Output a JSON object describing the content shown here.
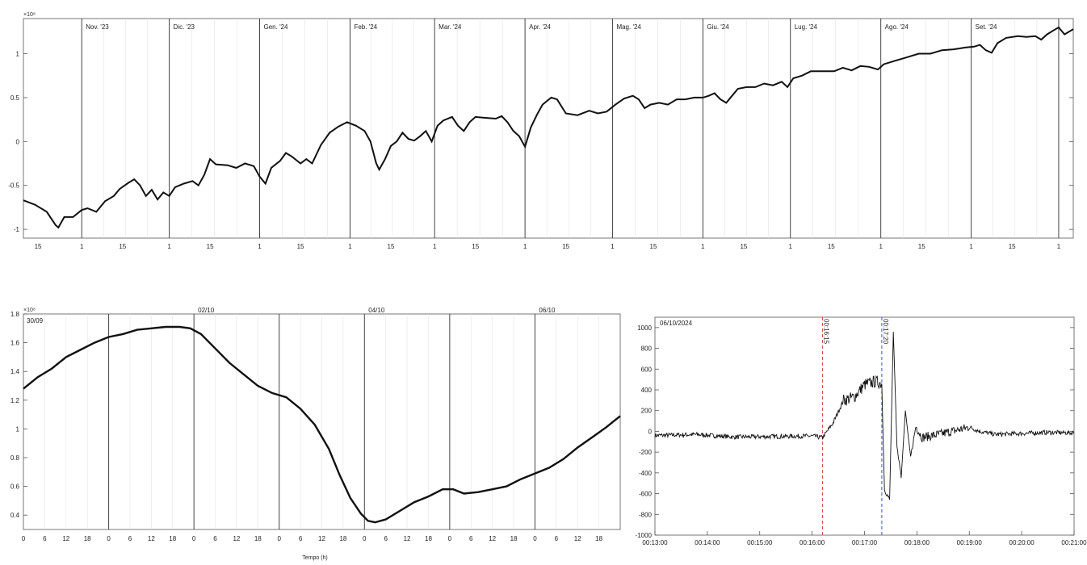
{
  "chart_data": [
    {
      "type": "line",
      "y_multiplier_label": "×10⁸",
      "ylim": [
        -1.1,
        1.4
      ],
      "y_ticks": [
        -1,
        -0.5,
        0,
        0.5,
        1
      ],
      "y_tick_labels": [
        "-1",
        "-0.5",
        "0",
        "0.5",
        "1"
      ],
      "x_range_days": [
        0,
        360
      ],
      "month_boundaries": [
        {
          "day": 20,
          "label": "Nov. '23"
        },
        {
          "day": 50,
          "label": "Dic. '23"
        },
        {
          "day": 81,
          "label": "Gen. '24"
        },
        {
          "day": 112,
          "label": "Feb. '24"
        },
        {
          "day": 141,
          "label": "Mar. '24"
        },
        {
          "day": 172,
          "label": "Apr. '24"
        },
        {
          "day": 202,
          "label": "Mag. '24"
        },
        {
          "day": 233,
          "label": "Giu. '24"
        },
        {
          "day": 263,
          "label": "Lug. '24"
        },
        {
          "day": 294,
          "label": "Ago. '24"
        },
        {
          "day": 325,
          "label": "Set. '24"
        },
        {
          "day": 355,
          "label": ""
        }
      ],
      "x_ticks": [
        {
          "day": 5,
          "label": "15"
        },
        {
          "day": 20,
          "label": "1"
        },
        {
          "day": 34,
          "label": "15"
        },
        {
          "day": 50,
          "label": "1"
        },
        {
          "day": 64,
          "label": "15"
        },
        {
          "day": 81,
          "label": "1"
        },
        {
          "day": 95,
          "label": "15"
        },
        {
          "day": 112,
          "label": "1"
        },
        {
          "day": 126,
          "label": "15"
        },
        {
          "day": 141,
          "label": "1"
        },
        {
          "day": 155,
          "label": "15"
        },
        {
          "day": 172,
          "label": "1"
        },
        {
          "day": 186,
          "label": "15"
        },
        {
          "day": 202,
          "label": "1"
        },
        {
          "day": 216,
          "label": "15"
        },
        {
          "day": 233,
          "label": "1"
        },
        {
          "day": 247,
          "label": "15"
        },
        {
          "day": 263,
          "label": "1"
        },
        {
          "day": 277,
          "label": "15"
        },
        {
          "day": 294,
          "label": "1"
        },
        {
          "day": 308,
          "label": "15"
        },
        {
          "day": 325,
          "label": "1"
        },
        {
          "day": 339,
          "label": "15"
        },
        {
          "day": 355,
          "label": "1"
        }
      ],
      "points": [
        [
          0,
          -0.67
        ],
        [
          4,
          -0.72
        ],
        [
          8,
          -0.8
        ],
        [
          11,
          -0.95
        ],
        [
          12,
          -0.98
        ],
        [
          14,
          -0.86
        ],
        [
          17,
          -0.86
        ],
        [
          20,
          -0.78
        ],
        [
          22,
          -0.76
        ],
        [
          25,
          -0.8
        ],
        [
          28,
          -0.68
        ],
        [
          31,
          -0.62
        ],
        [
          33,
          -0.54
        ],
        [
          36,
          -0.47
        ],
        [
          38,
          -0.43
        ],
        [
          40,
          -0.5
        ],
        [
          42,
          -0.62
        ],
        [
          44,
          -0.55
        ],
        [
          46,
          -0.66
        ],
        [
          48,
          -0.58
        ],
        [
          50,
          -0.62
        ],
        [
          52,
          -0.52
        ],
        [
          55,
          -0.48
        ],
        [
          58,
          -0.45
        ],
        [
          60,
          -0.5
        ],
        [
          62,
          -0.38
        ],
        [
          64,
          -0.2
        ],
        [
          66,
          -0.26
        ],
        [
          70,
          -0.27
        ],
        [
          73,
          -0.3
        ],
        [
          76,
          -0.25
        ],
        [
          79,
          -0.28
        ],
        [
          81,
          -0.4
        ],
        [
          83,
          -0.48
        ],
        [
          85,
          -0.3
        ],
        [
          88,
          -0.22
        ],
        [
          90,
          -0.13
        ],
        [
          92,
          -0.17
        ],
        [
          95,
          -0.25
        ],
        [
          97,
          -0.2
        ],
        [
          99,
          -0.25
        ],
        [
          102,
          -0.04
        ],
        [
          105,
          0.1
        ],
        [
          108,
          0.17
        ],
        [
          111,
          0.22
        ],
        [
          114,
          0.18
        ],
        [
          117,
          0.12
        ],
        [
          119,
          0.0
        ],
        [
          121,
          -0.25
        ],
        [
          122,
          -0.32
        ],
        [
          124,
          -0.2
        ],
        [
          126,
          -0.05
        ],
        [
          128,
          0.0
        ],
        [
          130,
          0.1
        ],
        [
          132,
          0.03
        ],
        [
          134,
          0.01
        ],
        [
          136,
          0.06
        ],
        [
          138,
          0.12
        ],
        [
          140,
          0.0
        ],
        [
          142,
          0.18
        ],
        [
          144,
          0.24
        ],
        [
          147,
          0.28
        ],
        [
          149,
          0.18
        ],
        [
          151,
          0.12
        ],
        [
          153,
          0.22
        ],
        [
          155,
          0.28
        ],
        [
          158,
          0.27
        ],
        [
          162,
          0.26
        ],
        [
          164,
          0.29
        ],
        [
          166,
          0.22
        ],
        [
          168,
          0.12
        ],
        [
          170,
          0.06
        ],
        [
          172,
          -0.06
        ],
        [
          174,
          0.16
        ],
        [
          176,
          0.3
        ],
        [
          178,
          0.42
        ],
        [
          181,
          0.5
        ],
        [
          183,
          0.48
        ],
        [
          186,
          0.32
        ],
        [
          190,
          0.3
        ],
        [
          194,
          0.35
        ],
        [
          197,
          0.32
        ],
        [
          200,
          0.34
        ],
        [
          203,
          0.42
        ],
        [
          206,
          0.49
        ],
        [
          209,
          0.52
        ],
        [
          211,
          0.48
        ],
        [
          213,
          0.38
        ],
        [
          215,
          0.42
        ],
        [
          218,
          0.44
        ],
        [
          221,
          0.42
        ],
        [
          224,
          0.48
        ],
        [
          227,
          0.48
        ],
        [
          230,
          0.5
        ],
        [
          233,
          0.5
        ],
        [
          235,
          0.52
        ],
        [
          237,
          0.55
        ],
        [
          239,
          0.48
        ],
        [
          241,
          0.44
        ],
        [
          243,
          0.52
        ],
        [
          245,
          0.6
        ],
        [
          248,
          0.62
        ],
        [
          251,
          0.62
        ],
        [
          254,
          0.66
        ],
        [
          257,
          0.64
        ],
        [
          260,
          0.68
        ],
        [
          262,
          0.62
        ],
        [
          264,
          0.72
        ],
        [
          267,
          0.75
        ],
        [
          270,
          0.8
        ],
        [
          274,
          0.8
        ],
        [
          278,
          0.8
        ],
        [
          281,
          0.84
        ],
        [
          284,
          0.81
        ],
        [
          287,
          0.86
        ],
        [
          290,
          0.85
        ],
        [
          293,
          0.82
        ],
        [
          295,
          0.88
        ],
        [
          299,
          0.92
        ],
        [
          303,
          0.96
        ],
        [
          307,
          1.0
        ],
        [
          311,
          1.0
        ],
        [
          315,
          1.04
        ],
        [
          319,
          1.05
        ],
        [
          323,
          1.07
        ],
        [
          326,
          1.08
        ],
        [
          328,
          1.1
        ],
        [
          330,
          1.04
        ],
        [
          332,
          1.01
        ],
        [
          334,
          1.12
        ],
        [
          337,
          1.18
        ],
        [
          341,
          1.2
        ],
        [
          344,
          1.19
        ],
        [
          347,
          1.2
        ],
        [
          349,
          1.16
        ],
        [
          351,
          1.22
        ],
        [
          353,
          1.26
        ],
        [
          355,
          1.3
        ],
        [
          357,
          1.22
        ],
        [
          360,
          1.28
        ]
      ]
    },
    {
      "type": "line",
      "y_multiplier_label": "×10⁸",
      "ylim": [
        0.3,
        1.8
      ],
      "y_ticks": [
        0.4,
        0.6,
        0.8,
        1.0,
        1.2,
        1.4,
        1.6,
        1.8
      ],
      "y_tick_labels": [
        "0.4",
        "0.6",
        "0.8",
        "1",
        "1.2",
        "1.4",
        "1.6",
        "1.8"
      ],
      "xlabel": "Tempo (h)",
      "x_range_hours": [
        0,
        168
      ],
      "annotation": "30/09",
      "day_boundaries": [
        {
          "hour": 24,
          "label": ""
        },
        {
          "hour": 48,
          "label": "02/10"
        },
        {
          "hour": 72,
          "label": ""
        },
        {
          "hour": 96,
          "label": "04/10"
        },
        {
          "hour": 120,
          "label": ""
        },
        {
          "hour": 144,
          "label": "06/10"
        }
      ],
      "x_tick_step_hours": 6,
      "x_tick_labels_cycle": [
        "0",
        "6",
        "12",
        "18"
      ],
      "points": [
        [
          0,
          1.28
        ],
        [
          4,
          1.36
        ],
        [
          8,
          1.42
        ],
        [
          12,
          1.5
        ],
        [
          16,
          1.55
        ],
        [
          20,
          1.6
        ],
        [
          24,
          1.64
        ],
        [
          28,
          1.66
        ],
        [
          32,
          1.69
        ],
        [
          36,
          1.7
        ],
        [
          40,
          1.71
        ],
        [
          44,
          1.71
        ],
        [
          47,
          1.7
        ],
        [
          50,
          1.66
        ],
        [
          54,
          1.56
        ],
        [
          58,
          1.46
        ],
        [
          62,
          1.38
        ],
        [
          66,
          1.3
        ],
        [
          70,
          1.25
        ],
        [
          74,
          1.22
        ],
        [
          78,
          1.14
        ],
        [
          82,
          1.03
        ],
        [
          86,
          0.86
        ],
        [
          89,
          0.68
        ],
        [
          92,
          0.52
        ],
        [
          95,
          0.41
        ],
        [
          97,
          0.36
        ],
        [
          99,
          0.35
        ],
        [
          102,
          0.37
        ],
        [
          106,
          0.43
        ],
        [
          110,
          0.49
        ],
        [
          114,
          0.53
        ],
        [
          118,
          0.58
        ],
        [
          121,
          0.58
        ],
        [
          124,
          0.55
        ],
        [
          128,
          0.56
        ],
        [
          132,
          0.58
        ],
        [
          136,
          0.6
        ],
        [
          140,
          0.65
        ],
        [
          144,
          0.69
        ],
        [
          148,
          0.73
        ],
        [
          152,
          0.79
        ],
        [
          156,
          0.87
        ],
        [
          160,
          0.94
        ],
        [
          164,
          1.01
        ],
        [
          168,
          1.09
        ]
      ]
    },
    {
      "type": "line",
      "annotation": "06/10/2024",
      "ylim": [
        -1000,
        1100
      ],
      "y_ticks": [
        -1000,
        -800,
        -600,
        -400,
        -200,
        0,
        200,
        400,
        600,
        800,
        1000
      ],
      "y_tick_labels": [
        "-1000",
        "-800",
        "-600",
        "-400",
        "-200",
        "0",
        "200",
        "400",
        "600",
        "800",
        "1000"
      ],
      "x_ticks_min": [
        13,
        14,
        15,
        16,
        17,
        18,
        19,
        20,
        21
      ],
      "x_tick_labels": [
        "00:13:00",
        "00:14:00",
        "00:15:00",
        "00:16:00",
        "00:17:00",
        "00:18:00",
        "00:19:00",
        "00:20:00",
        "00:21:00"
      ],
      "markers": [
        {
          "time_min": 16.2,
          "color": "#d04040",
          "label": "00:16:15"
        },
        {
          "time_min": 17.33,
          "color": "#4050d0",
          "label": "00:17:20"
        }
      ],
      "envelope": [
        [
          13.0,
          -40
        ],
        [
          13.8,
          -30
        ],
        [
          14.5,
          -55
        ],
        [
          15.2,
          -50
        ],
        [
          16.0,
          -45
        ],
        [
          16.2,
          -60
        ],
        [
          16.4,
          80
        ],
        [
          16.6,
          300
        ],
        [
          16.8,
          330
        ],
        [
          17.0,
          450
        ],
        [
          17.2,
          480
        ],
        [
          17.33,
          460
        ],
        [
          17.38,
          -560
        ],
        [
          17.48,
          -660
        ],
        [
          17.55,
          960
        ],
        [
          17.62,
          -150
        ],
        [
          17.7,
          -450
        ],
        [
          17.78,
          200
        ],
        [
          17.88,
          -250
        ],
        [
          17.98,
          50
        ],
        [
          18.1,
          -60
        ],
        [
          18.5,
          -20
        ],
        [
          19.0,
          40
        ],
        [
          19.2,
          0
        ],
        [
          19.5,
          -30
        ],
        [
          20.0,
          -20
        ],
        [
          20.5,
          -10
        ],
        [
          21.0,
          -15
        ]
      ]
    }
  ]
}
